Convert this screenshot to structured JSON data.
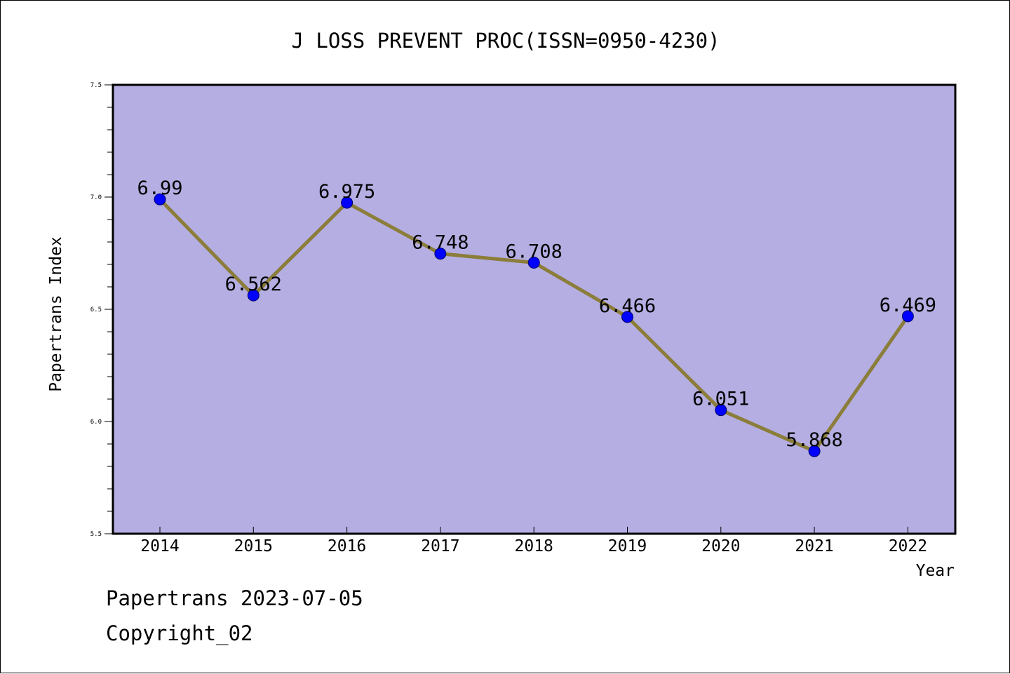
{
  "chart_data": {
    "type": "line",
    "title": "J LOSS PREVENT PROC(ISSN=0950-4230)",
    "xlabel": "Year",
    "ylabel": "Papertrans Index",
    "categories": [
      "2014",
      "2015",
      "2016",
      "2017",
      "2018",
      "2019",
      "2020",
      "2021",
      "2022"
    ],
    "series": [
      {
        "values": [
          6.99,
          6.562,
          6.975,
          6.748,
          6.708,
          6.466,
          6.051,
          5.868,
          6.469
        ],
        "data_labels": [
          "6.99",
          "6.562",
          "6.975",
          "6.748",
          "6.708",
          "6.466",
          "6.051",
          "5.868",
          "6.469"
        ]
      }
    ],
    "ylim": [
      5.5,
      7.5
    ],
    "yticks": [
      "5.5",
      "6.0",
      "6.5",
      "7.0",
      "7.5"
    ],
    "grid": false,
    "colors": {
      "plot_background": "#b4aee2",
      "line": "#8b7d3a",
      "marker": "#0000ff",
      "axis": "#000000"
    }
  },
  "footer": {
    "stamp": "Papertrans 2023-07-05",
    "copyright": "Copyright_02"
  }
}
